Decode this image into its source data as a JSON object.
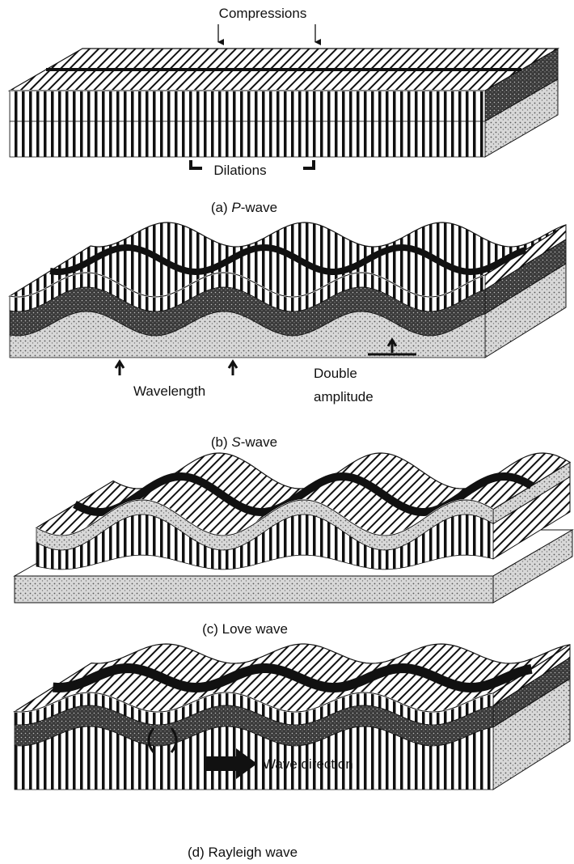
{
  "p_wave": {
    "compressions": "Compressions",
    "dilations": "Dilations",
    "caption": {
      "prefix": "(a) ",
      "italic": "P",
      "suffix": "-wave"
    }
  },
  "s_wave": {
    "wavelength": "Wavelength",
    "double_amplitude": [
      "Double",
      "amplitude"
    ],
    "caption": {
      "prefix": "(b) ",
      "italic": "S",
      "suffix": "-wave"
    }
  },
  "love_wave": {
    "caption": "(c) Love wave"
  },
  "rayleigh_wave": {
    "wave_direction": "Wave direction",
    "caption": "(d) Rayleigh wave"
  }
}
